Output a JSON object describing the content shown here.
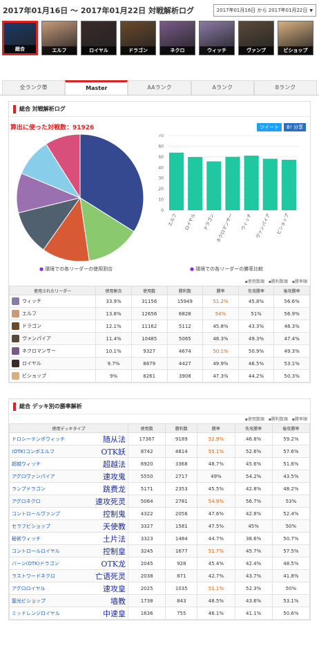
{
  "header": {
    "title": "2017年01月16日 〜 2017年01月22日 対戦解析ログ",
    "date_range": "2017年01月16日 から 2017年01月22日"
  },
  "leaders": [
    {
      "name": "総合",
      "color": "#1a3a6a",
      "active": true
    },
    {
      "name": "エルフ",
      "color": "#c89a7a",
      "active": false
    },
    {
      "name": "ロイヤル",
      "color": "#3a2a2a",
      "active": false
    },
    {
      "name": "ドラゴン",
      "color": "#6a4a2a",
      "active": false
    },
    {
      "name": "ネクロ",
      "color": "#7a5a8a",
      "active": false
    },
    {
      "name": "ウィッチ",
      "color": "#8a7aa8",
      "active": false
    },
    {
      "name": "ヴァンプ",
      "color": "#5a4a3a",
      "active": false
    },
    {
      "name": "ビショップ",
      "color": "#d8b080",
      "active": false
    }
  ],
  "tabs": [
    "全ランク帯",
    "Master",
    "AAランク",
    "Aランク",
    "Bランク"
  ],
  "overview": {
    "section_title": "総合 対戦解析ログ",
    "battle_count_label": "算出に使った対戦数：91926",
    "tweet": "ツイート",
    "hatena": "B! 分享",
    "pie_caption": "環境での各リーダーの使用割合",
    "bar_caption": "環境での各リーダーの勝率比較"
  },
  "chart_data": [
    {
      "type": "pie",
      "categories": [
        "ウィッチ",
        "エルフ",
        "ドラゴン",
        "ヴァンパイア",
        "ネクロマンサー",
        "ロイヤル",
        "ビショップ"
      ],
      "values": [
        33.9,
        13.8,
        12.1,
        11.4,
        10.1,
        9.7,
        9.0
      ],
      "colors": [
        "#34498f",
        "#8ac96e",
        "#d85a34",
        "#51606e",
        "#9a70b0",
        "#88cdea",
        "#d94f7c"
      ]
    },
    {
      "type": "bar",
      "categories": [
        "エルフ",
        "ロイヤル",
        "ドラゴン",
        "ネクロマンサー",
        "ウィッチ",
        "ヴァンパイア",
        "ビショップ"
      ],
      "values": [
        54.0,
        49.9,
        45.8,
        50.1,
        51.2,
        48.3,
        47.3
      ],
      "ylim": [
        0,
        70
      ],
      "yticks": [
        "0",
        "10",
        "20",
        "30",
        "40",
        "50",
        "60",
        "70"
      ],
      "color": "#1fc8a0",
      "grid": true
    }
  ],
  "legend_links": "▪使用数順　▪勝利数順　▪勝率順",
  "leader_table": {
    "headers": [
      "使用されたリーダー",
      "使用割合",
      "使用数",
      "勝利数",
      "勝率",
      "先攻勝率",
      "後攻勝率"
    ],
    "rows": [
      {
        "name": "ウィッチ",
        "share": "33.9%",
        "uses": "31156",
        "wins": "15949",
        "rate": "51.2%",
        "first": "45.8%",
        "second": "56.6%",
        "hi": true,
        "color": "#8a7aa8"
      },
      {
        "name": "エルフ",
        "share": "13.8%",
        "uses": "12656",
        "wins": "6828",
        "rate": "54%",
        "first": "51%",
        "second": "56.9%",
        "hi": true,
        "color": "#c89a7a"
      },
      {
        "name": "ドラゴン",
        "share": "12.1%",
        "uses": "11162",
        "wins": "5112",
        "rate": "45.8%",
        "first": "43.3%",
        "second": "48.3%",
        "hi": false,
        "color": "#6a4a2a"
      },
      {
        "name": "ヴァンパイア",
        "share": "11.4%",
        "uses": "10485",
        "wins": "5065",
        "rate": "48.3%",
        "first": "49.3%",
        "second": "47.4%",
        "hi": false,
        "color": "#5a4a3a"
      },
      {
        "name": "ネクロマンサー",
        "share": "10.1%",
        "uses": "9327",
        "wins": "4674",
        "rate": "50.1%",
        "first": "50.9%",
        "second": "49.3%",
        "hi": true,
        "color": "#7a5a8a"
      },
      {
        "name": "ロイヤル",
        "share": "9.7%",
        "uses": "8879",
        "wins": "4427",
        "rate": "49.9%",
        "first": "46.5%",
        "second": "53.1%",
        "hi": false,
        "color": "#3a2a2a"
      },
      {
        "name": "ビショップ",
        "share": "9%",
        "uses": "8261",
        "wins": "3908",
        "rate": "47.3%",
        "first": "44.2%",
        "second": "50.3%",
        "hi": false,
        "color": "#d8b080"
      }
    ]
  },
  "deck_section": {
    "title": "総合 デッキ別の勝率解析",
    "legend_links": "▪使用数順　▪勝利数順　▪勝率順",
    "headers": [
      "使用デッキタイプ",
      "使用数",
      "勝利数",
      "勝率",
      "先攻勝率",
      "後攻勝率"
    ],
    "rows": [
      {
        "name": "ドロシーテンポウィッチ",
        "note": "随从法",
        "uses": "17367",
        "wins": "9189",
        "rate": "52.9%",
        "first": "46.8%",
        "second": "59.2%",
        "hi": true
      },
      {
        "name": "(OTK)コンボエルフ",
        "note": "OTK妖",
        "uses": "8742",
        "wins": "4814",
        "rate": "55.1%",
        "first": "52.6%",
        "second": "57.6%",
        "hi": true
      },
      {
        "name": "超越ウィッチ",
        "note": "超越法",
        "uses": "6920",
        "wins": "3368",
        "rate": "48.7%",
        "first": "45.6%",
        "second": "51.6%",
        "hi": false
      },
      {
        "name": "アグロヴァンパイア",
        "note": "速攻鬼",
        "uses": "5550",
        "wins": "2717",
        "rate": "49%",
        "first": "54.2%",
        "second": "43.5%",
        "hi": false
      },
      {
        "name": "ランプドラゴン",
        "note": "跳费龙",
        "uses": "5171",
        "wins": "2353",
        "rate": "45.5%",
        "first": "42.8%",
        "second": "48.2%",
        "hi": false
      },
      {
        "name": "アグロネクロ",
        "note": "速攻死灵",
        "uses": "5064",
        "wins": "2781",
        "rate": "54.9%",
        "first": "56.7%",
        "second": "53%",
        "hi": true
      },
      {
        "name": "コントロールヴァンプ",
        "note": "控制鬼",
        "uses": "4322",
        "wins": "2056",
        "rate": "47.6%",
        "first": "42.8%",
        "second": "52.4%",
        "hi": false
      },
      {
        "name": "セラフビショップ",
        "note": "天使教",
        "uses": "3327",
        "wins": "1581",
        "rate": "47.5%",
        "first": "45%",
        "second": "50%",
        "hi": false
      },
      {
        "name": "秘術ウィッチ",
        "note": "土片法",
        "uses": "3323",
        "wins": "1484",
        "rate": "44.7%",
        "first": "38.6%",
        "second": "50.7%",
        "hi": false
      },
      {
        "name": "コントロールロイヤル",
        "note": "控制皇",
        "uses": "3245",
        "wins": "1677",
        "rate": "51.7%",
        "first": "45.7%",
        "second": "57.5%",
        "hi": true
      },
      {
        "name": "バーン(OTK)ドラゴン",
        "note": "OTK龙",
        "uses": "2045",
        "wins": "928",
        "rate": "45.4%",
        "first": "42.4%",
        "second": "48.5%",
        "hi": false
      },
      {
        "name": "ラストワードネクロ",
        "note": "亡语死灵",
        "uses": "2038",
        "wins": "871",
        "rate": "42.7%",
        "first": "43.7%",
        "second": "41.8%",
        "hi": false
      },
      {
        "name": "アグロロイヤル",
        "note": "速攻皇",
        "uses": "2025",
        "wins": "1035",
        "rate": "51.1%",
        "first": "52.3%",
        "second": "50%",
        "hi": true
      },
      {
        "name": "聖光ビショップ",
        "note": "墙教",
        "uses": "1738",
        "wins": "843",
        "rate": "48.5%",
        "first": "43.6%",
        "second": "53.1%",
        "hi": false
      },
      {
        "name": "ミッドレンジロイヤル",
        "note": "中速皇",
        "uses": "1636",
        "wins": "755",
        "rate": "46.1%",
        "first": "41.1%",
        "second": "50.6%",
        "hi": false
      }
    ]
  }
}
